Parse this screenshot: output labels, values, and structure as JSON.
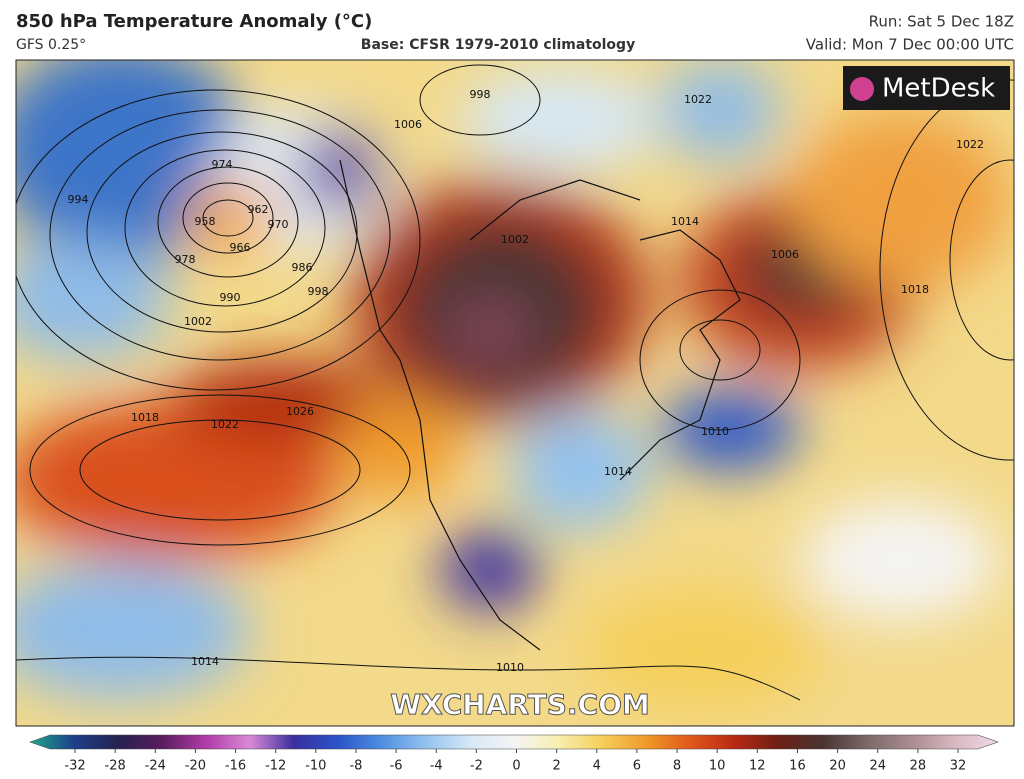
{
  "header": {
    "title": "850 hPa Temperature Anomaly (°C)",
    "model": "GFS 0.25°",
    "base": "Base: CFSR 1979-2010 climatology",
    "run": "Run: Sat 5 Dec 18Z",
    "valid": "Valid: Mon 7 Dec 00:00 UTC"
  },
  "logo": "MetDesk",
  "watermark": "WXCHARTS.COM",
  "isobar_labels": [
    974,
    994,
    958,
    966,
    970,
    962,
    978,
    986,
    990,
    998,
    1002,
    1006,
    1018,
    1022,
    1026,
    1014,
    1002,
    1006,
    1018,
    1022,
    1010,
    1014,
    1014,
    1010,
    1022,
    998
  ],
  "colorbar": {
    "ticks": [
      -32,
      -28,
      -24,
      -20,
      -16,
      -12,
      -10,
      -8,
      -6,
      -4,
      -2,
      0,
      2,
      4,
      6,
      8,
      10,
      12,
      16,
      20,
      24,
      28,
      32
    ],
    "colors": [
      "#1fa88a",
      "#1e3f8a",
      "#24224f",
      "#5a1c5e",
      "#b03ca8",
      "#d98ad6",
      "#3a2fa0",
      "#2a55c8",
      "#4f8fe0",
      "#93c2ef",
      "#d6e8f7",
      "#f4f4f4",
      "#f7eeb0",
      "#f5cf5a",
      "#f09a2a",
      "#e0581b",
      "#b82a14",
      "#6e1f14",
      "#4a3430",
      "#7a6868",
      "#a88a90",
      "#d8b8c0",
      "#f0d8e8"
    ]
  }
}
